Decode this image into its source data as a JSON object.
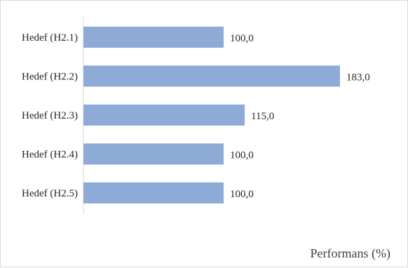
{
  "chart_data": {
    "type": "bar",
    "orientation": "horizontal",
    "categories": [
      "Hedef (H2.1)",
      "Hedef (H2.2)",
      "Hedef (H2.3)",
      "Hedef (H2.4)",
      "Hedef (H2.5)"
    ],
    "values": [
      100.0,
      183.0,
      115.0,
      100.0,
      100.0
    ],
    "value_labels": [
      "100,0",
      "183,0",
      "115,0",
      "100,0",
      "100,0"
    ],
    "title": "",
    "xlabel": "Performans (%)",
    "ylabel": "",
    "xlim": [
      0,
      200
    ],
    "grid": false,
    "bar_color": "#8eaad6"
  }
}
